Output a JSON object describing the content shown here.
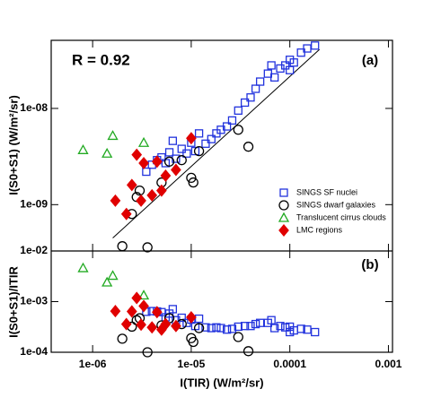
{
  "chart_data": [
    {
      "type": "scatter",
      "xscale": "log",
      "yscale": "log",
      "xlim": [
        3.8e-07,
        0.0011
      ],
      "ylim": [
        3.3e-10,
        5.1e-08
      ],
      "yticks": [
        {
          "value": 1e-09,
          "label": "1e-09"
        },
        {
          "value": 1e-08,
          "label": "1e-08"
        }
      ],
      "xticks": [
        1e-06,
        1e-05,
        0.0001,
        0.001
      ],
      "ylabel": "I(S0+S1) (W/m²/sr)",
      "annotations": [
        "R = 0.92",
        "(a)"
      ],
      "legend": "right",
      "fit": {
        "x": [
          1.6e-06,
          0.0002
        ],
        "y": [
          4.5e-10,
          4.1e-08
        ],
        "color": "#000000"
      },
      "series": [
        {
          "name": "SINGS SF nuclei",
          "color": "#2233dd",
          "marker": "square",
          "filled": false,
          "x": [
            3.5e-06,
            4e-06,
            4.5e-06,
            5e-06,
            5.5e-06,
            6e-06,
            6.5e-06,
            7e-06,
            8e-06,
            9e-06,
            1e-05,
            1.1e-05,
            1.2e-05,
            1.4e-05,
            1.6e-05,
            1.8e-05,
            2e-05,
            2.3e-05,
            2.6e-05,
            3e-05,
            3.5e-05,
            4e-05,
            4.5e-05,
            5e-05,
            6e-05,
            7e-05,
            8e-05,
            9e-05,
            0.0001,
            0.00011,
            0.00013,
            0.00015,
            0.00018,
            6.5e-05,
            0.0001
          ],
          "values": [
            2.2e-09,
            2.6e-09,
            2.9e-09,
            3.1e-09,
            2.7e-09,
            3.5e-09,
            4.6e-09,
            3e-09,
            3.8e-09,
            3.4e-09,
            4.4e-09,
            3.6e-09,
            5.5e-09,
            4.3e-09,
            4.8e-09,
            5.5e-09,
            6e-09,
            6.5e-09,
            7.5e-09,
            9.5e-09,
            1.15e-08,
            1.3e-08,
            1.6e-08,
            1.9e-08,
            2.3e-08,
            2.1e-08,
            2.6e-08,
            2.8e-08,
            2.5e-08,
            3e-08,
            3.8e-08,
            4.2e-08,
            4.5e-08,
            2.8e-08,
            3.2e-08
          ]
        },
        {
          "name": "SINGS dwarf galaxies",
          "color": "#000000",
          "marker": "circle",
          "filled": false,
          "x": [
            2e-06,
            2.5e-06,
            3e-06,
            3.6e-06,
            5e-06,
            6e-06,
            8e-06,
            1e-05,
            1.05e-05,
            1.2e-05,
            3e-05,
            3.8e-05,
            2.8e-06
          ],
          "values": [
            3.7e-10,
            8e-10,
            1.4e-09,
            3.6e-10,
            1.7e-09,
            2.8e-09,
            2.9e-09,
            1.9e-09,
            1.7e-09,
            3.6e-09,
            6e-09,
            4e-09,
            1.2e-09
          ]
        },
        {
          "name": "Translucent cirrus clouds",
          "color": "#22aa22",
          "marker": "triangle",
          "filled": false,
          "x": [
            8e-07,
            1.4e-06,
            1.6e-06,
            3.3e-06
          ],
          "values": [
            3.7e-09,
            3.4e-09,
            5.2e-09,
            4.4e-09
          ]
        },
        {
          "name": "LMC regions",
          "color": "#e00000",
          "marker": "diamond",
          "filled": true,
          "x": [
            1.7e-06,
            2.2e-06,
            2.5e-06,
            2.8e-06,
            3.3e-06,
            4e-06,
            4.5e-06,
            5e-06,
            5.5e-06,
            7e-06,
            1e-05,
            3.1e-06
          ],
          "values": [
            1.1e-09,
            8e-10,
            1.6e-09,
            3.3e-09,
            2.7e-09,
            1.25e-09,
            2.8e-09,
            1.4e-09,
            2e-09,
            2.3e-09,
            4.9e-09,
            1.1e-09
          ]
        }
      ]
    },
    {
      "type": "scatter",
      "xscale": "log",
      "yscale": "log",
      "ylim": [
        0.0001,
        0.01
      ],
      "yticks": [
        {
          "value": 0.0001,
          "label": "1e-04"
        },
        {
          "value": 0.001,
          "label": "1e-03"
        },
        {
          "value": 0.01,
          "label": "1e-02"
        }
      ],
      "xticks": [
        {
          "value": 1e-06,
          "label": "1e-06"
        },
        {
          "value": 1e-05,
          "label": "1e-05"
        },
        0.0001,
        0.001
      ],
      "xlabel": "I(TIR) (W/m²/sr)",
      "ylabel": "I(S0+S1)/ITIR",
      "annotations": [
        "(b)"
      ],
      "series": [
        {
          "values": [
            0.00063,
            0.00065,
            0.00064,
            0.00062,
            0.00049,
            0.00058,
            0.00071,
            0.00043,
            0.00048,
            0.00038,
            0.00044,
            0.00033,
            0.00046,
            0.00031,
            0.0003,
            0.00031,
            0.0003,
            0.00028,
            0.00029,
            0.00032,
            0.00033,
            0.00033,
            0.00036,
            0.00038,
            0.00038,
            0.0003,
            0.00033,
            0.00031,
            0.00025,
            0.00027,
            0.00029,
            0.00028,
            0.00025,
            0.00043,
            0.00032
          ]
        },
        {
          "values": [
            0.000185,
            0.00032,
            0.00047,
            0.0001,
            0.00034,
            0.00047,
            0.00036,
            0.00019,
            0.00016,
            0.0003,
            0.0002,
            0.000105,
            0.00043
          ]
        },
        {
          "values": [
            0.0046,
            0.0024,
            0.00325,
            0.00133
          ]
        },
        {
          "values": [
            0.00065,
            0.00036,
            0.00064,
            0.00118,
            0.00082,
            0.00031,
            0.00062,
            0.00028,
            0.00036,
            0.00033,
            0.00049,
            0.00035
          ]
        }
      ]
    }
  ]
}
